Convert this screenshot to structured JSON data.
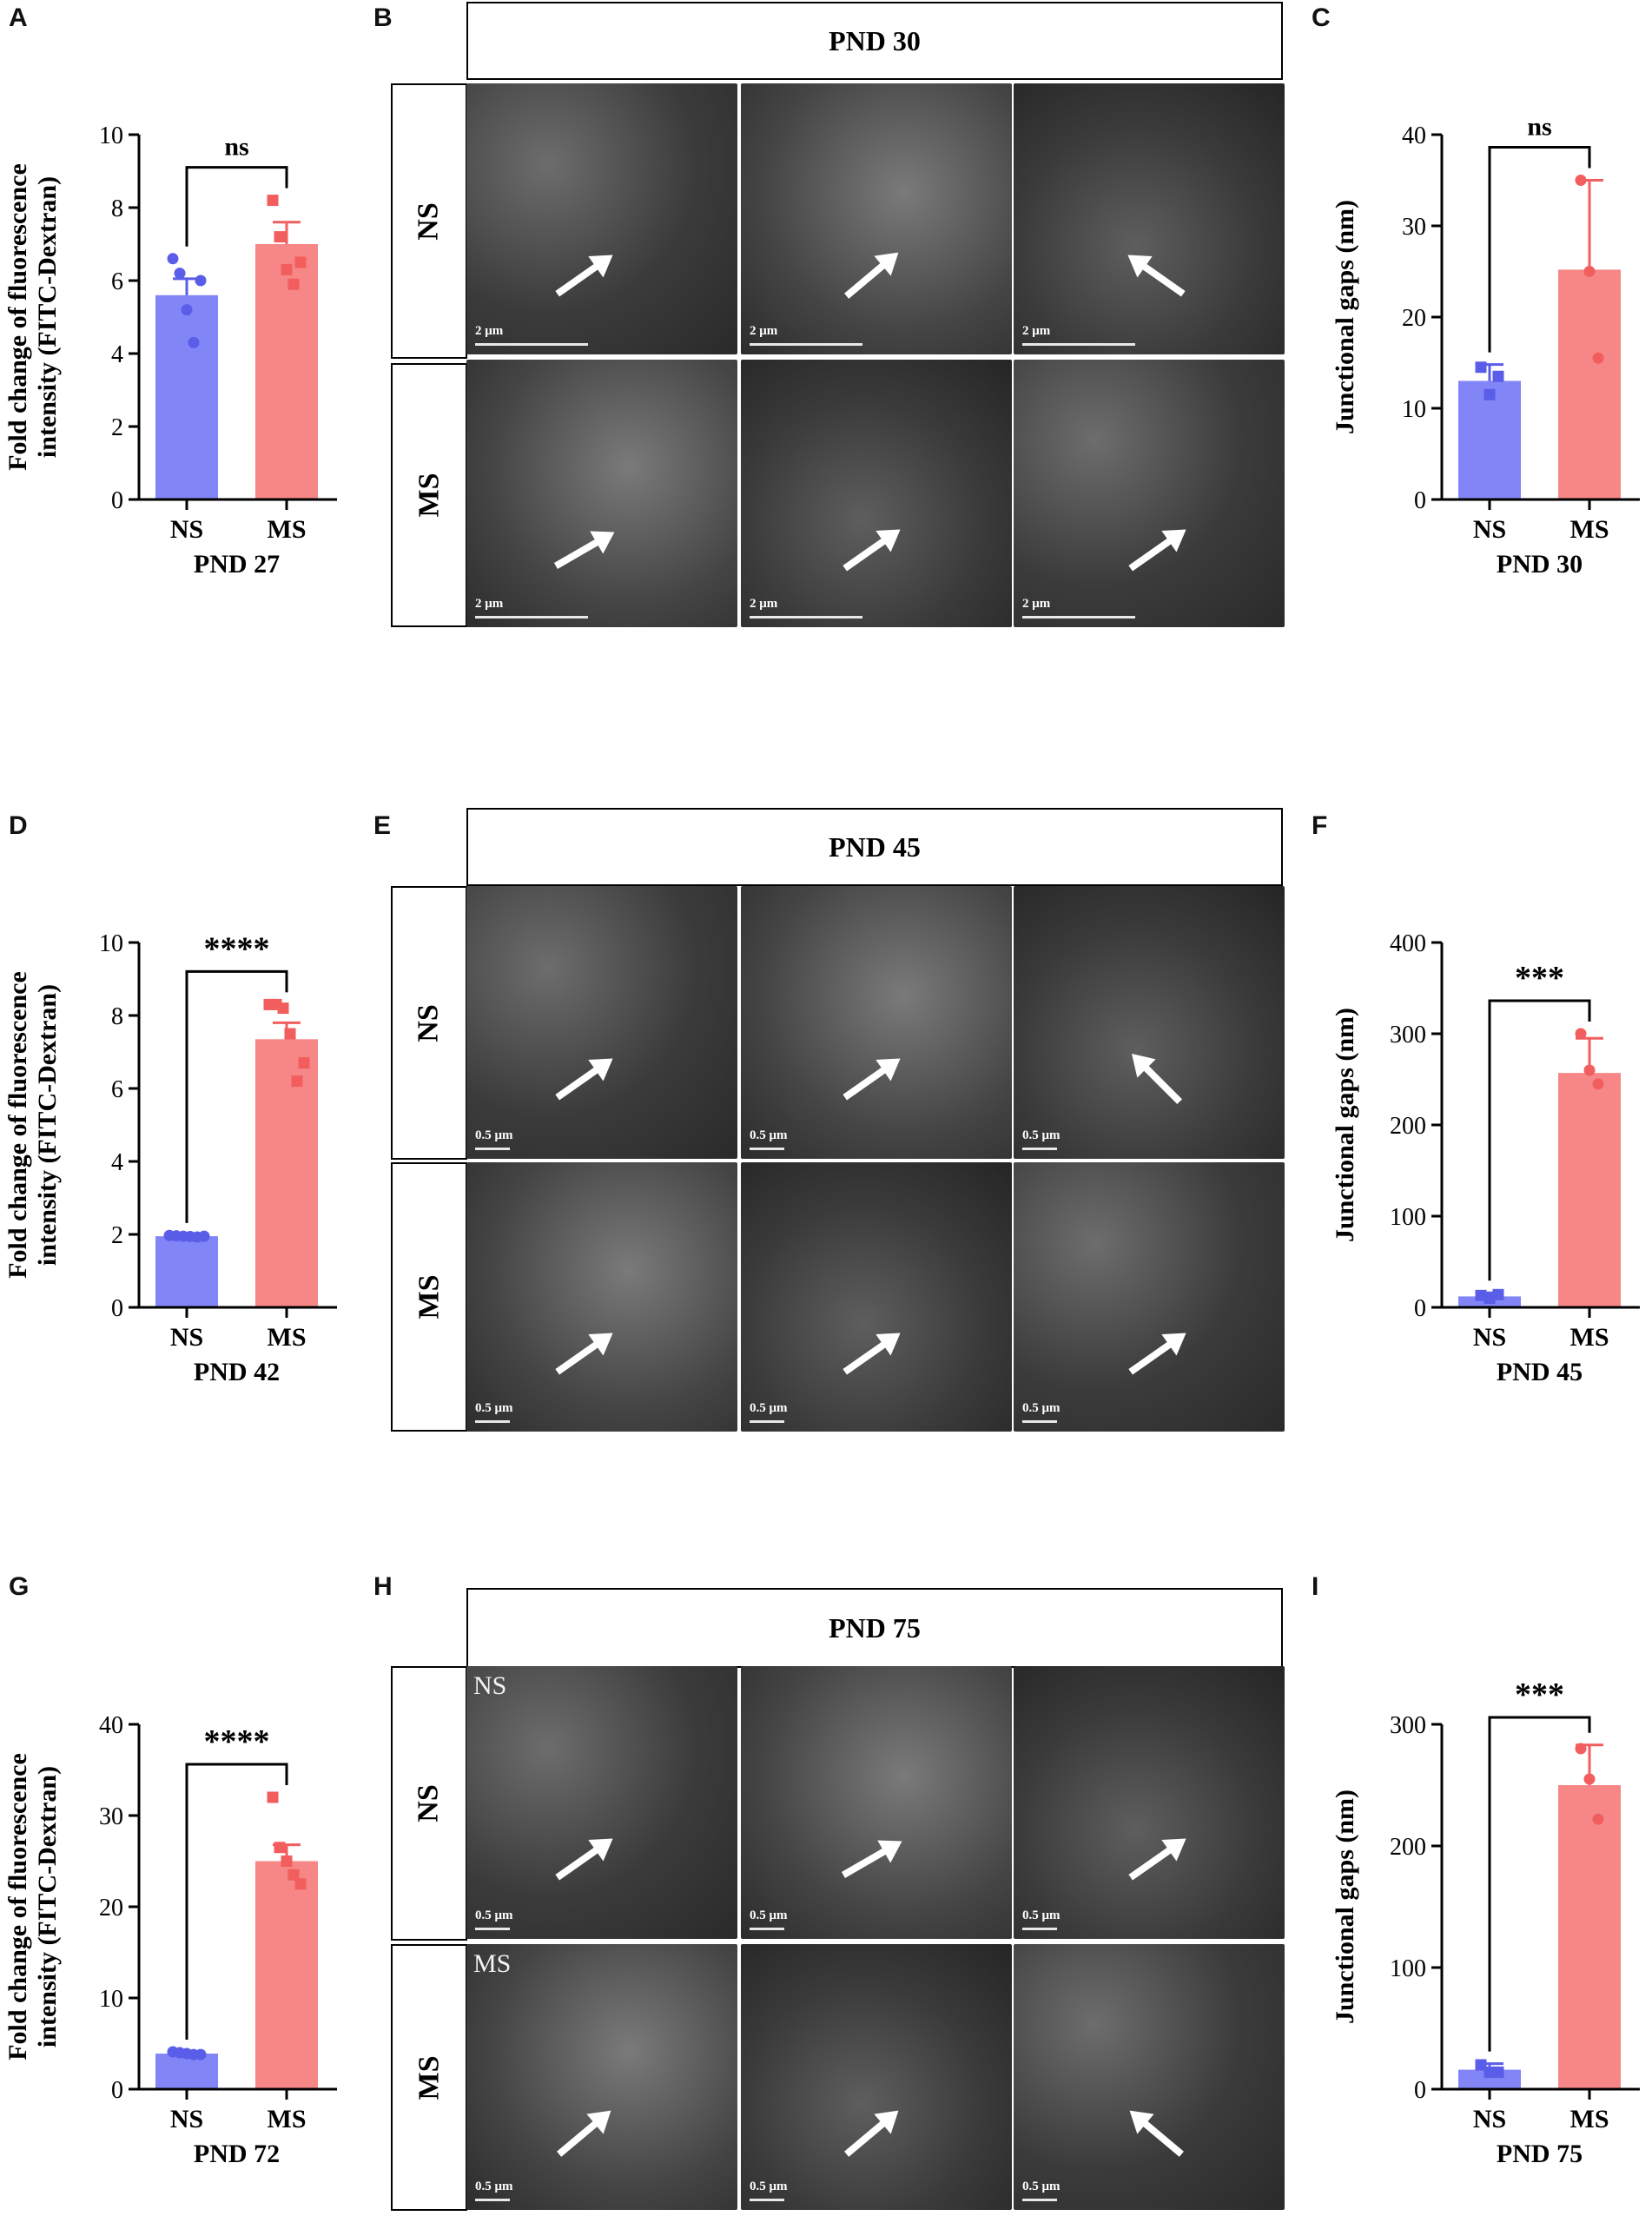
{
  "panels": {
    "A": "A",
    "B": "B",
    "C": "C",
    "D": "D",
    "E": "E",
    "F": "F",
    "G": "G",
    "H": "H",
    "I": "I"
  },
  "colors": {
    "ns": "#7b7ef6",
    "ms": "#f78080",
    "ns_point": "#5a5de8",
    "ms_point": "#f25e5e"
  },
  "fitc_ylabel_line1": "Fold change  of fluorescence",
  "fitc_ylabel_line2": "intensity (FITC-Dextran)",
  "gaps_ylabel": "Junctional gaps (nm)",
  "em": {
    "B": {
      "header": "PND 30",
      "row1": "NS",
      "row2": "MS",
      "scale": "2 μm"
    },
    "E": {
      "header": "PND 45",
      "row1": "NS",
      "row2": "MS",
      "scale": "0.5 μm"
    },
    "H": {
      "header": "PND 75",
      "row1": "NS",
      "row2": "MS",
      "scale": "0.5 μm",
      "corner_ns": "NS",
      "corner_ms": "MS"
    }
  },
  "chart_data": [
    {
      "id": "A",
      "type": "bar",
      "categories": [
        "NS",
        "MS"
      ],
      "values": [
        5.6,
        7.0
      ],
      "errors": [
        0.45,
        0.6
      ],
      "points": [
        [
          6.6,
          6.2,
          5.2,
          4.3,
          6.0
        ],
        [
          8.2,
          7.2,
          6.3,
          5.9,
          6.5
        ]
      ],
      "point_shapes": [
        "circle",
        "square"
      ],
      "ylim": [
        0,
        10
      ],
      "yticks": [
        0,
        2,
        4,
        6,
        8,
        10
      ],
      "xlabel": "PND 27",
      "significance": "ns"
    },
    {
      "id": "C",
      "type": "bar",
      "categories": [
        "NS",
        "MS"
      ],
      "values": [
        13,
        25.2
      ],
      "errors": [
        1.8,
        9.8
      ],
      "points": [
        [
          14.5,
          11.5,
          13.5
        ],
        [
          35.0,
          25.0,
          15.5
        ]
      ],
      "point_shapes": [
        "square",
        "circle"
      ],
      "ylim": [
        0,
        40
      ],
      "yticks": [
        0,
        10,
        20,
        30,
        40
      ],
      "xlabel": "PND 30",
      "significance": "ns"
    },
    {
      "id": "D",
      "type": "bar",
      "categories": [
        "NS",
        "MS"
      ],
      "values": [
        1.95,
        7.35
      ],
      "errors": [
        0.03,
        0.45
      ],
      "points": [
        [
          1.97,
          1.96,
          1.95,
          1.94,
          1.93,
          1.95
        ],
        [
          8.3,
          8.3,
          8.2,
          7.5,
          6.2,
          6.7
        ]
      ],
      "point_shapes": [
        "circle",
        "square"
      ],
      "ylim": [
        0,
        10
      ],
      "yticks": [
        0,
        2,
        4,
        6,
        8,
        10
      ],
      "xlabel": "PND 42",
      "significance": "****"
    },
    {
      "id": "F",
      "type": "bar",
      "categories": [
        "NS",
        "MS"
      ],
      "values": [
        12,
        257
      ],
      "errors": [
        4,
        38
      ],
      "points": [
        [
          13,
          10,
          14
        ],
        [
          300,
          260,
          245
        ]
      ],
      "point_shapes": [
        "square",
        "circle"
      ],
      "ylim": [
        0,
        400
      ],
      "yticks": [
        0,
        100,
        200,
        300,
        400
      ],
      "xlabel": "PND 45",
      "significance": "***"
    },
    {
      "id": "G",
      "type": "bar",
      "categories": [
        "NS",
        "MS"
      ],
      "values": [
        3.9,
        25.0
      ],
      "errors": [
        0.2,
        1.8
      ],
      "points": [
        [
          4.1,
          4.0,
          3.9,
          3.8,
          3.8
        ],
        [
          32.0,
          26.5,
          25.0,
          23.5,
          22.5
        ]
      ],
      "point_shapes": [
        "circle",
        "square"
      ],
      "ylim": [
        0,
        40
      ],
      "yticks": [
        0,
        10,
        20,
        30,
        40
      ],
      "xlabel": "PND 72",
      "significance": "****"
    },
    {
      "id": "I",
      "type": "bar",
      "categories": [
        "NS",
        "MS"
      ],
      "values": [
        16,
        250
      ],
      "errors": [
        5,
        33
      ],
      "points": [
        [
          20,
          14,
          14
        ],
        [
          280,
          255,
          222
        ]
      ],
      "point_shapes": [
        "square",
        "circle"
      ],
      "ylim": [
        0,
        300
      ],
      "yticks": [
        0,
        100,
        200,
        300
      ],
      "xlabel": "PND 75",
      "significance": "***"
    }
  ]
}
